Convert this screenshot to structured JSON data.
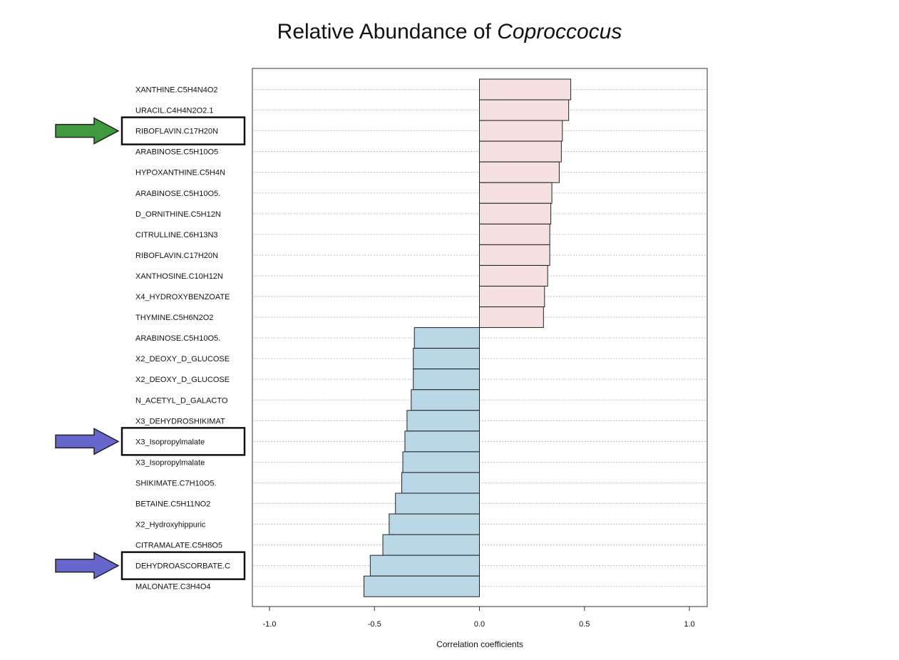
{
  "title": {
    "prefix": "Relative Abundance of ",
    "emphasis": "Coproccocus"
  },
  "chart_data": {
    "type": "bar",
    "orientation": "horizontal",
    "title": "Relative Abundance of Coproccocus",
    "xlabel": "Correlation coefficients",
    "ylabel": "",
    "xlim": [
      -1.0,
      1.0
    ],
    "xticks": [
      "-1.0",
      "-0.5",
      "0.0",
      "0.5",
      "1.0"
    ],
    "xtick_values": [
      -1.0,
      -0.5,
      0.0,
      0.5,
      1.0
    ],
    "grid": "horizontal dotted",
    "categories": [
      "XANTHINE.C5H4N4O2",
      "URACIL.C4H4N2O2.1",
      "RIBOFLAVIN.C17H20N",
      "ARABINOSE.C5H10O5",
      "HYPOXANTHINE.C5H4N",
      "ARABINOSE.C5H10O5.",
      "D_ORNITHINE.C5H12N",
      "CITRULLINE.C6H13N3",
      "RIBOFLAVIN.C17H20N",
      "XANTHOSINE.C10H12N",
      "X4_HYDROXYBENZOATE",
      "THYMINE.C5H6N2O2",
      "ARABINOSE.C5H10O5.",
      "X2_DEOXY_D_GLUCOSE",
      "X2_DEOXY_D_GLUCOSE",
      "N_ACETYL_D_GALACTO",
      "X3_DEHYDROSHIKIMAT",
      "X3_Isopropylmalate",
      "X3_Isopropylmalate",
      "SHIKIMATE.C7H10O5.",
      "BETAINE.C5H11NO2",
      "X2_Hydroxyhippuric",
      "CITRAMALATE.C5H8O5",
      "DEHYDROASCORBATE.C",
      "MALONATE.C3H4O4"
    ],
    "values": [
      0.435,
      0.425,
      0.395,
      0.39,
      0.38,
      0.345,
      0.34,
      0.335,
      0.335,
      0.325,
      0.31,
      0.305,
      -0.31,
      -0.315,
      -0.315,
      -0.325,
      -0.345,
      -0.355,
      -0.365,
      -0.37,
      -0.4,
      -0.43,
      -0.46,
      -0.52,
      -0.55
    ],
    "colors": {
      "positive": "#f5e1e1",
      "negative": "#b9d7e6",
      "bar_border": "#222222"
    },
    "highlights": [
      {
        "index": 2,
        "arrow_color": "#3e9a3e"
      },
      {
        "index": 17,
        "arrow_color": "#6666cc"
      },
      {
        "index": 23,
        "arrow_color": "#6666cc"
      }
    ]
  }
}
